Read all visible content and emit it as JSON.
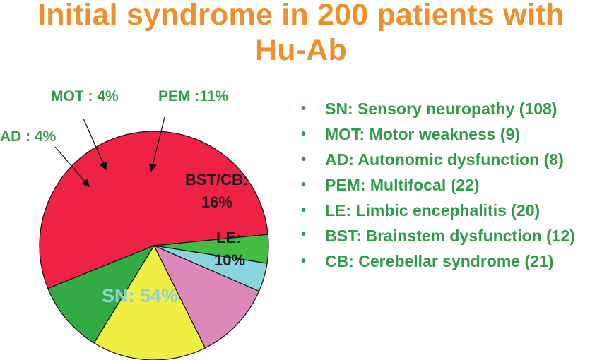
{
  "title_line1": "Initial syndrome in 200 patients with",
  "title_line2": "Hu-Ab",
  "colors": {
    "title": "#ee8f2b",
    "legend_text": "#2f9a48",
    "label_dark": "#1d1d1d",
    "label_green": "#2f9a48",
    "label_light": "#8fd0dc"
  },
  "chart_data": {
    "type": "pie",
    "title": "",
    "slices": [
      {
        "key": "SN",
        "label": "SN: 54%",
        "value": 54,
        "color": "#ee2244"
      },
      {
        "key": "AD",
        "label": "AD : 4%",
        "value": 4,
        "color": "#44bb44"
      },
      {
        "key": "MOT",
        "label": "MOT : 4%",
        "value": 4,
        "color": "#88d6dd"
      },
      {
        "key": "PEM",
        "label": "PEM :11%",
        "value": 11,
        "color": "#dd88bb"
      },
      {
        "key": "BST/CB",
        "label_line1": "BST/CB:",
        "label_line2": "16%",
        "value": 16,
        "color": "#eeee44"
      },
      {
        "key": "LE",
        "label_line1": "LE:",
        "label_line2": "10%",
        "value": 10,
        "color": "#33aa44"
      }
    ]
  },
  "legend": [
    {
      "bullet": "•",
      "text": "SN: Sensory neuropathy (108)"
    },
    {
      "bullet": "•",
      "text": "MOT: Motor weakness (9)"
    },
    {
      "bullet": "•",
      "text": "AD: Autonomic dysfunction (8)"
    },
    {
      "bullet": "•",
      "text": "PEM: Multifocal (22)"
    },
    {
      "bullet": "•",
      "text": "LE: Limbic encephalitis (20)"
    },
    {
      "bullet": "•",
      "text": "BST: Brainstem dysfunction (12)"
    },
    {
      "bullet": "•",
      "text": "CB: Cerebellar syndrome (21)"
    }
  ]
}
